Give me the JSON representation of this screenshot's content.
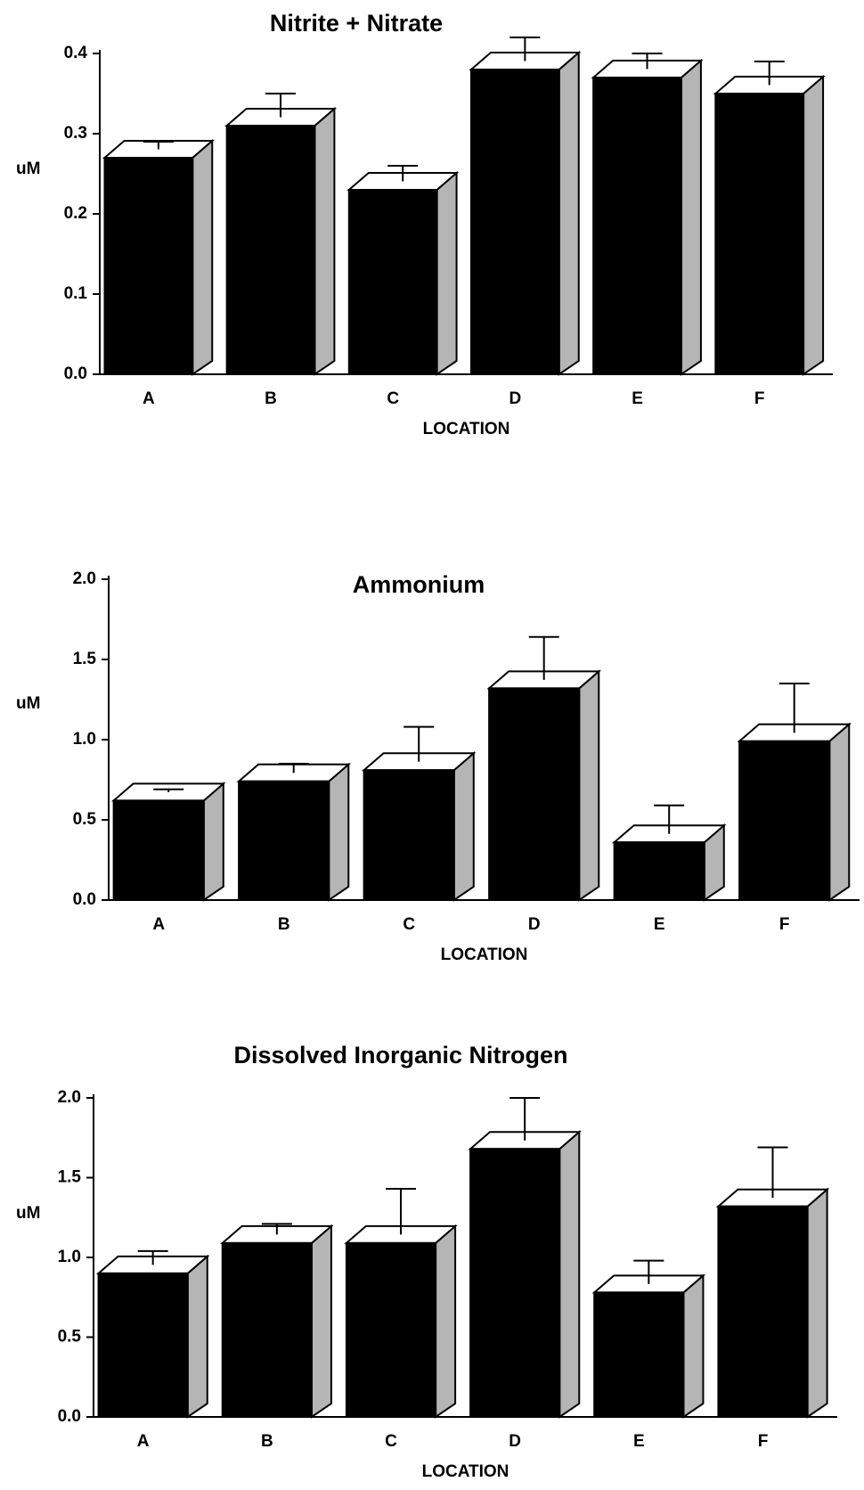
{
  "chart_data": [
    {
      "type": "bar",
      "title": "Nitrite + Nitrate",
      "ylabel": "uM",
      "xlabel": "LOCATION",
      "categories": [
        "A",
        "B",
        "C",
        "D",
        "E",
        "F"
      ],
      "values": [
        0.27,
        0.31,
        0.23,
        0.38,
        0.37,
        0.35
      ],
      "errors": [
        0.02,
        0.04,
        0.03,
        0.04,
        0.03,
        0.04
      ],
      "color": "#000000",
      "side_color": "#b5b5b5",
      "ylim": [
        0,
        0.4
      ],
      "yticks": [
        {
          "value": 0,
          "label": "0.0"
        },
        0.1,
        0.2,
        0.3,
        0.4
      ]
    },
    {
      "type": "bar",
      "title": "Ammonium",
      "ylabel": "uM",
      "xlabel": "LOCATION",
      "categories": [
        "A",
        "B",
        "C",
        "D",
        "E",
        "F"
      ],
      "values": [
        0.62,
        0.74,
        0.81,
        1.32,
        0.36,
        0.99
      ],
      "errors": [
        0.07,
        0.11,
        0.27,
        0.32,
        0.23,
        0.36
      ],
      "color": "#000000",
      "side_color": "#b5b5b5",
      "ylim": [
        0,
        2
      ],
      "yticks": [
        {
          "value": 0,
          "label": "0.0"
        },
        0.5,
        {
          "value": 1,
          "label": "1.0"
        },
        1.5,
        {
          "value": 2,
          "label": "2.0"
        }
      ]
    },
    {
      "type": "bar",
      "title": "Dissolved Inorganic Nitrogen",
      "ylabel": "uM",
      "xlabel": "LOCATION",
      "categories": [
        "A",
        "B",
        "C",
        "D",
        "E",
        "F"
      ],
      "values": [
        0.9,
        1.09,
        1.09,
        1.68,
        0.78,
        1.32
      ],
      "errors": [
        0.14,
        0.12,
        0.34,
        0.32,
        0.2,
        0.37
      ],
      "color": "#000000",
      "side_color": "#b5b5b5",
      "ylim": [
        0,
        2
      ],
      "yticks": [
        {
          "value": 0,
          "label": "0.0"
        },
        0.5,
        {
          "value": 1,
          "label": "1.0"
        },
        1.5,
        {
          "value": 2,
          "label": "2.0"
        }
      ]
    }
  ]
}
